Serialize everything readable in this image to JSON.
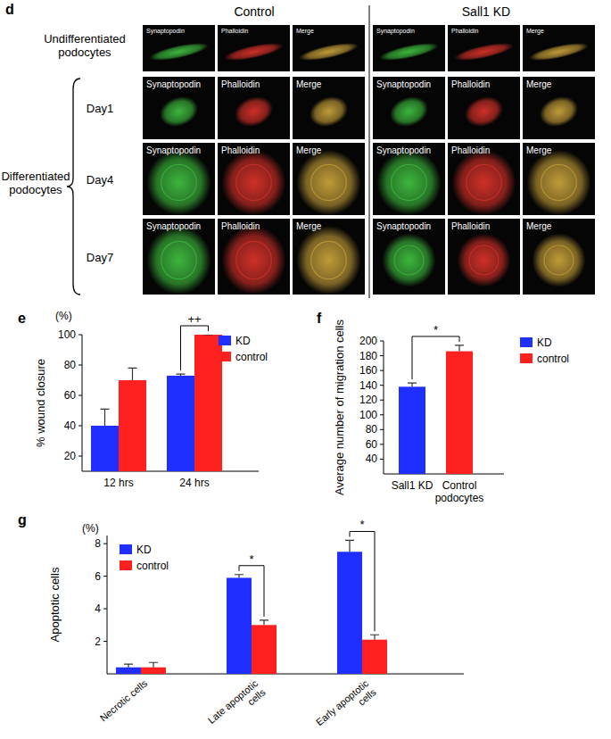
{
  "image_panel": {
    "panel": "d",
    "conditions": [
      "Control",
      "Sall1 KD"
    ],
    "rows": [
      "Undifferentiated podocytes",
      "Day1",
      "Day4",
      "Day7"
    ],
    "group_label": "Differentiated podocytes",
    "channels": [
      "Synaptopodin",
      "Phalloidin",
      "Merge"
    ]
  },
  "chart_data": [
    {
      "type": "bar",
      "panel": "e",
      "unit": "(%)",
      "y_label": "% wound closure",
      "categories": [
        "12 hrs",
        "24 hrs"
      ],
      "series": [
        {
          "name": "KD",
          "color": "#1f2fff",
          "values": [
            40,
            73
          ],
          "errors": [
            11,
            1
          ]
        },
        {
          "name": "control",
          "color": "#ff2020",
          "values": [
            70,
            100
          ],
          "errors": [
            8,
            0
          ]
        }
      ],
      "ylim": [
        10,
        100
      ],
      "yticks": [
        20,
        40,
        60,
        80,
        100
      ],
      "legend": "upper right",
      "annotations": [
        {
          "text": "++",
          "category": "24 hrs"
        }
      ]
    },
    {
      "type": "bar",
      "panel": "f",
      "y_label": "Average number of migration cells",
      "categories": [
        "Sall1 KD",
        "Control podocytes"
      ],
      "series": [
        {
          "name": "KD",
          "color": "#1f2fff",
          "values": [
            138,
            null
          ],
          "errors": [
            5,
            null
          ]
        },
        {
          "name": "control",
          "color": "#ff2020",
          "values": [
            null,
            186
          ],
          "errors": [
            null,
            8
          ]
        }
      ],
      "ylim": [
        20,
        200
      ],
      "yticks": [
        40,
        60,
        80,
        100,
        120,
        140,
        160,
        180,
        200
      ],
      "legend": "upper right",
      "annotations": [
        {
          "text": "*",
          "categories": [
            "Sall1 KD",
            "Control podocytes"
          ]
        }
      ]
    },
    {
      "type": "bar",
      "panel": "g",
      "unit": "(%)",
      "y_label": "Apoptotic cells",
      "categories": [
        "Necrotic cells",
        "Late apoptotic cells",
        "Early apoptotic cells"
      ],
      "series": [
        {
          "name": "KD",
          "color": "#1f2fff",
          "values": [
            0.4,
            5.9,
            7.5
          ],
          "errors": [
            0.2,
            0.2,
            0.7
          ]
        },
        {
          "name": "control",
          "color": "#ff2020",
          "values": [
            0.4,
            3.0,
            2.1
          ],
          "errors": [
            0.3,
            0.3,
            0.3
          ]
        }
      ],
      "ylim": [
        0,
        8.5
      ],
      "yticks": [
        2,
        4,
        6,
        8
      ],
      "legend": "upper left",
      "annotations": [
        {
          "text": "*",
          "category": "Late apoptotic cells"
        },
        {
          "text": "*",
          "category": "Early apoptotic cells"
        }
      ]
    }
  ]
}
